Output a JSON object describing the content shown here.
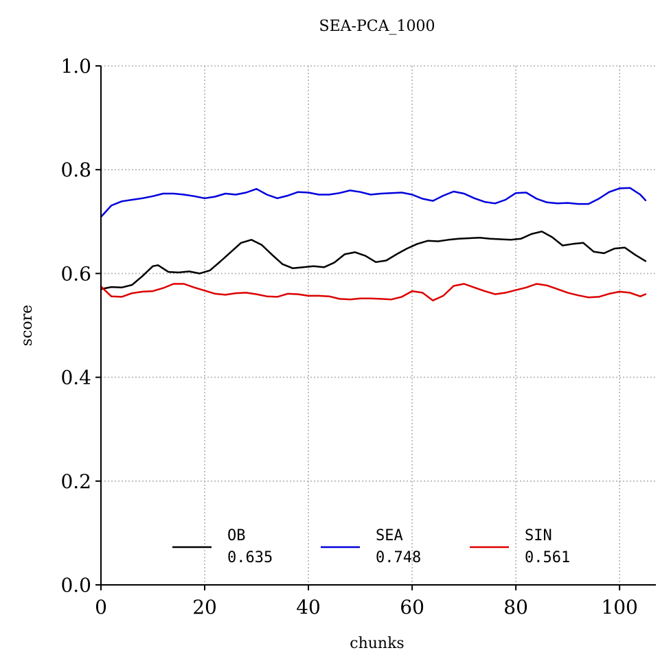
{
  "chart_data": {
    "type": "line",
    "title": "SEA-PCA_1000",
    "xlabel": "chunks",
    "ylabel": "score",
    "xlim": [
      0,
      107
    ],
    "ylim": [
      0,
      1.0
    ],
    "xticks": [
      0,
      20,
      40,
      60,
      80,
      100
    ],
    "yticks": [
      0.0,
      0.2,
      0.4,
      0.6,
      0.8,
      1.0
    ],
    "ytick_labels": [
      "0.0",
      "0.2",
      "0.4",
      "0.6",
      "0.8",
      "1.0"
    ],
    "grid": true,
    "legend_position": "bottom-center",
    "series": [
      {
        "name": "OB",
        "legend_value": "0.635",
        "color": "#000000",
        "x": [
          0,
          2,
          4,
          6,
          8,
          10,
          11,
          13,
          15,
          17,
          19,
          21,
          23,
          25,
          27,
          29,
          31,
          33,
          35,
          37,
          39,
          41,
          43,
          45,
          47,
          49,
          51,
          53,
          55,
          57,
          59,
          61,
          63,
          65,
          67,
          69,
          71,
          73,
          75,
          77,
          79,
          81,
          83,
          85,
          87,
          89,
          91,
          93,
          95,
          97,
          99,
          101,
          103,
          105
        ],
        "y": [
          0.57,
          0.574,
          0.573,
          0.578,
          0.595,
          0.614,
          0.616,
          0.603,
          0.602,
          0.604,
          0.6,
          0.606,
          0.623,
          0.641,
          0.659,
          0.665,
          0.655,
          0.636,
          0.618,
          0.61,
          0.612,
          0.614,
          0.612,
          0.621,
          0.637,
          0.641,
          0.634,
          0.622,
          0.625,
          0.637,
          0.648,
          0.657,
          0.663,
          0.662,
          0.665,
          0.667,
          0.668,
          0.669,
          0.667,
          0.666,
          0.665,
          0.667,
          0.676,
          0.681,
          0.67,
          0.654,
          0.657,
          0.659,
          0.642,
          0.639,
          0.648,
          0.65,
          0.636,
          0.624
        ]
      },
      {
        "name": "SEA",
        "legend_value": "0.748",
        "color": "#0000dd",
        "x": [
          0,
          2,
          4,
          6,
          8,
          10,
          12,
          14,
          16,
          18,
          20,
          22,
          24,
          26,
          28,
          30,
          32,
          34,
          36,
          38,
          40,
          42,
          44,
          46,
          48,
          50,
          52,
          54,
          56,
          58,
          60,
          62,
          64,
          66,
          68,
          70,
          72,
          74,
          76,
          78,
          80,
          82,
          84,
          86,
          88,
          90,
          92,
          94,
          96,
          98,
          100,
          102,
          104,
          105
        ],
        "y": [
          0.709,
          0.731,
          0.739,
          0.742,
          0.745,
          0.749,
          0.754,
          0.754,
          0.752,
          0.749,
          0.745,
          0.748,
          0.754,
          0.752,
          0.756,
          0.763,
          0.752,
          0.745,
          0.75,
          0.757,
          0.756,
          0.752,
          0.752,
          0.755,
          0.76,
          0.757,
          0.752,
          0.754,
          0.755,
          0.756,
          0.752,
          0.744,
          0.74,
          0.75,
          0.758,
          0.754,
          0.745,
          0.738,
          0.735,
          0.742,
          0.755,
          0.756,
          0.744,
          0.737,
          0.735,
          0.736,
          0.734,
          0.734,
          0.744,
          0.757,
          0.764,
          0.765,
          0.752,
          0.741
        ]
      },
      {
        "name": "SIN",
        "legend_value": "0.561",
        "color": "#dd0000",
        "x": [
          0,
          2,
          4,
          6,
          8,
          10,
          12,
          14,
          16,
          18,
          20,
          22,
          24,
          26,
          28,
          30,
          32,
          34,
          36,
          38,
          40,
          42,
          44,
          46,
          48,
          50,
          52,
          54,
          56,
          58,
          60,
          62,
          64,
          66,
          68,
          70,
          72,
          74,
          76,
          78,
          80,
          82,
          84,
          86,
          88,
          90,
          92,
          94,
          96,
          98,
          100,
          102,
          104,
          105
        ],
        "y": [
          0.575,
          0.556,
          0.555,
          0.562,
          0.565,
          0.566,
          0.572,
          0.58,
          0.58,
          0.573,
          0.567,
          0.561,
          0.559,
          0.562,
          0.563,
          0.56,
          0.556,
          0.555,
          0.561,
          0.56,
          0.557,
          0.557,
          0.556,
          0.551,
          0.55,
          0.552,
          0.552,
          0.551,
          0.55,
          0.555,
          0.566,
          0.563,
          0.548,
          0.557,
          0.576,
          0.58,
          0.573,
          0.566,
          0.56,
          0.563,
          0.568,
          0.573,
          0.58,
          0.577,
          0.57,
          0.563,
          0.558,
          0.554,
          0.555,
          0.561,
          0.565,
          0.563,
          0.556,
          0.56
        ]
      }
    ]
  }
}
